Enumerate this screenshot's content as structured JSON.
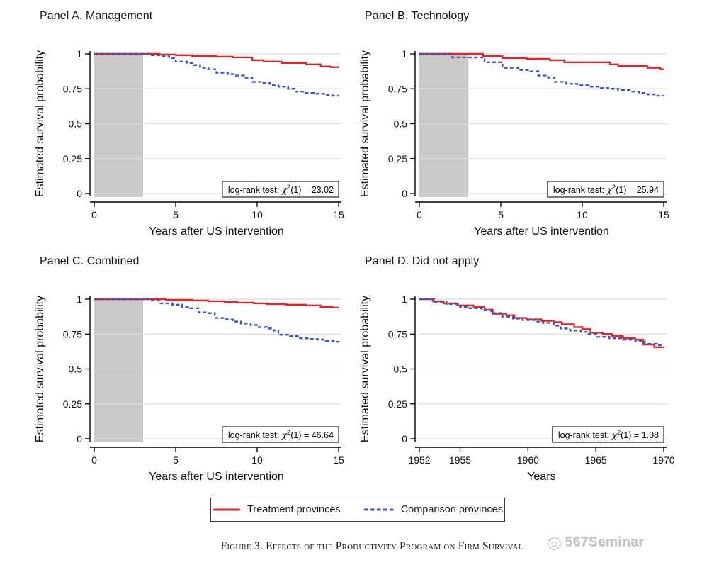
{
  "figure": {
    "caption": "Figure 3. Effects of the Productivity Program on Firm Survival",
    "watermark": "567Seminar"
  },
  "legend": {
    "position": "bottom",
    "items": [
      {
        "label": "Treatment provinces",
        "line_style": "solid",
        "color": "#e4242b"
      },
      {
        "label": "Comparison provinces",
        "line_style": "dashed",
        "color": "#3c55b8"
      }
    ]
  },
  "style": {
    "treatment_color": "#e4242b",
    "comparison_color": "#3c55b8",
    "grid_color": "#dcdfe3",
    "shade_color": "#c9c9c9",
    "axis_color": "#000000",
    "annotation_border": "#333333"
  },
  "chart_data": [
    {
      "type": "line",
      "subtype": "kaplan-meier-step",
      "title": "Panel A. Management",
      "xlabel": "Years after US intervention",
      "ylabel": "Estimated survival probability",
      "xlim": [
        0,
        15
      ],
      "ylim": [
        0,
        1
      ],
      "xticks": [
        0,
        5,
        10,
        15
      ],
      "yticks": [
        0,
        0.25,
        0.5,
        0.75,
        1
      ],
      "ytick_labels": [
        "0",
        "0.25",
        "0.5",
        "0.75",
        "1"
      ],
      "grid": true,
      "shaded_region_x": [
        0,
        3
      ],
      "logrank_text": "log-rank test: χ²(1) = 23.02",
      "logrank_chi2": 23.02,
      "series": [
        {
          "name": "Treatment provinces",
          "style": "solid",
          "color": "#e4242b",
          "step_points": [
            [
              0,
              1
            ],
            [
              4,
              0.995
            ],
            [
              5,
              0.99
            ],
            [
              6,
              0.985
            ],
            [
              7.5,
              0.98
            ],
            [
              8.5,
              0.975
            ],
            [
              9.7,
              0.955
            ],
            [
              10.4,
              0.945
            ],
            [
              11.5,
              0.935
            ],
            [
              13,
              0.925
            ],
            [
              13.9,
              0.91
            ],
            [
              14.5,
              0.905
            ],
            [
              15,
              0.905
            ]
          ]
        },
        {
          "name": "Comparison provinces",
          "style": "dashed",
          "color": "#3c55b8",
          "step_points": [
            [
              0,
              1
            ],
            [
              3.4,
              0.99
            ],
            [
              4.2,
              0.985
            ],
            [
              4.6,
              0.97
            ],
            [
              5,
              0.945
            ],
            [
              5.7,
              0.935
            ],
            [
              6.1,
              0.92
            ],
            [
              6.5,
              0.9
            ],
            [
              7,
              0.89
            ],
            [
              7.5,
              0.865
            ],
            [
              8.2,
              0.855
            ],
            [
              8.7,
              0.845
            ],
            [
              9.2,
              0.83
            ],
            [
              9.7,
              0.8
            ],
            [
              10.3,
              0.79
            ],
            [
              10.8,
              0.775
            ],
            [
              11.3,
              0.765
            ],
            [
              11.9,
              0.75
            ],
            [
              12.3,
              0.73
            ],
            [
              12.9,
              0.72
            ],
            [
              13.5,
              0.715
            ],
            [
              14.1,
              0.705
            ],
            [
              14.6,
              0.7
            ],
            [
              15,
              0.7
            ]
          ]
        }
      ]
    },
    {
      "type": "line",
      "subtype": "kaplan-meier-step",
      "title": "Panel B. Technology",
      "xlabel": "Years after US intervention",
      "ylabel": "Estimated survival probability",
      "xlim": [
        0,
        15
      ],
      "ylim": [
        0,
        1
      ],
      "xticks": [
        0,
        5,
        10,
        15
      ],
      "yticks": [
        0,
        0.25,
        0.5,
        0.75,
        1
      ],
      "ytick_labels": [
        "0",
        "0.25",
        "0.5",
        "0.75",
        "1"
      ],
      "grid": true,
      "shaded_region_x": [
        0,
        3
      ],
      "logrank_text": "log-rank test: χ²(1) = 25.94",
      "logrank_chi2": 25.94,
      "series": [
        {
          "name": "Treatment provinces",
          "style": "solid",
          "color": "#e4242b",
          "step_points": [
            [
              0,
              1
            ],
            [
              3.9,
              0.985
            ],
            [
              5.1,
              0.97
            ],
            [
              6.6,
              0.965
            ],
            [
              8,
              0.955
            ],
            [
              8.9,
              0.94
            ],
            [
              11.7,
              0.925
            ],
            [
              12.2,
              0.915
            ],
            [
              14,
              0.9
            ],
            [
              14.8,
              0.89
            ],
            [
              15,
              0.89
            ]
          ]
        },
        {
          "name": "Comparison provinces",
          "style": "dashed",
          "color": "#3c55b8",
          "step_points": [
            [
              0,
              1
            ],
            [
              2,
              0.975
            ],
            [
              4,
              0.94
            ],
            [
              5.1,
              0.9
            ],
            [
              6.2,
              0.885
            ],
            [
              6.8,
              0.875
            ],
            [
              7.3,
              0.845
            ],
            [
              7.9,
              0.83
            ],
            [
              8.3,
              0.8
            ],
            [
              9,
              0.785
            ],
            [
              9.7,
              0.775
            ],
            [
              10.4,
              0.765
            ],
            [
              11,
              0.755
            ],
            [
              11.6,
              0.75
            ],
            [
              12.2,
              0.74
            ],
            [
              12.9,
              0.73
            ],
            [
              13.5,
              0.72
            ],
            [
              14,
              0.71
            ],
            [
              14.6,
              0.7
            ],
            [
              15,
              0.7
            ]
          ]
        }
      ]
    },
    {
      "type": "line",
      "subtype": "kaplan-meier-step",
      "title": "Panel C. Combined",
      "xlabel": "Years after US intervention",
      "ylabel": "Estimated survival probability",
      "xlim": [
        0,
        15
      ],
      "ylim": [
        0,
        1
      ],
      "xticks": [
        0,
        5,
        10,
        15
      ],
      "yticks": [
        0,
        0.25,
        0.5,
        0.75,
        1
      ],
      "ytick_labels": [
        "0",
        "0.25",
        "0.5",
        "0.75",
        "1"
      ],
      "grid": true,
      "shaded_region_x": [
        0,
        3
      ],
      "logrank_text": "log-rank test: χ²(1) = 46.64",
      "logrank_chi2": 46.64,
      "series": [
        {
          "name": "Treatment provinces",
          "style": "solid",
          "color": "#e4242b",
          "step_points": [
            [
              0,
              1
            ],
            [
              4.4,
              0.995
            ],
            [
              6,
              0.99
            ],
            [
              7,
              0.985
            ],
            [
              8,
              0.98
            ],
            [
              8.8,
              0.975
            ],
            [
              9.8,
              0.97
            ],
            [
              10.6,
              0.965
            ],
            [
              11.8,
              0.96
            ],
            [
              13,
              0.955
            ],
            [
              13.9,
              0.945
            ],
            [
              14.6,
              0.94
            ],
            [
              15,
              0.94
            ]
          ]
        },
        {
          "name": "Comparison provinces",
          "style": "dashed",
          "color": "#3c55b8",
          "step_points": [
            [
              0,
              1
            ],
            [
              3.4,
              0.99
            ],
            [
              4,
              0.97
            ],
            [
              4.8,
              0.96
            ],
            [
              5.4,
              0.945
            ],
            [
              5.9,
              0.935
            ],
            [
              6.4,
              0.905
            ],
            [
              7,
              0.9
            ],
            [
              7.4,
              0.865
            ],
            [
              8,
              0.855
            ],
            [
              8.5,
              0.84
            ],
            [
              9,
              0.825
            ],
            [
              9.6,
              0.815
            ],
            [
              10.1,
              0.8
            ],
            [
              10.6,
              0.79
            ],
            [
              11,
              0.775
            ],
            [
              11.3,
              0.745
            ],
            [
              12,
              0.735
            ],
            [
              12.5,
              0.72
            ],
            [
              13.1,
              0.715
            ],
            [
              13.7,
              0.71
            ],
            [
              14.2,
              0.7
            ],
            [
              14.7,
              0.695
            ],
            [
              15,
              0.69
            ]
          ]
        }
      ]
    },
    {
      "type": "line",
      "subtype": "kaplan-meier-step",
      "title": "Panel D. Did not apply",
      "xlabel": "Years",
      "ylabel": "Estimated survival probability",
      "xlim": [
        1952,
        1970
      ],
      "ylim": [
        0,
        1
      ],
      "xticks": [
        1952,
        1955,
        1960,
        1965,
        1970
      ],
      "yticks": [
        0,
        0.25,
        0.5,
        0.75,
        1
      ],
      "ytick_labels": [
        "0",
        "0.25",
        "0.5",
        "0.75",
        "1"
      ],
      "grid": true,
      "shaded_region_x": null,
      "logrank_text": "log-rank test: χ²(1) = 1.08",
      "logrank_chi2": 1.08,
      "series": [
        {
          "name": "Treatment provinces",
          "style": "solid",
          "color": "#e4242b",
          "step_points": [
            [
              1952,
              1
            ],
            [
              1953,
              0.985
            ],
            [
              1953.8,
              0.97
            ],
            [
              1954.8,
              0.955
            ],
            [
              1956,
              0.945
            ],
            [
              1956.8,
              0.925
            ],
            [
              1957.4,
              0.895
            ],
            [
              1958.4,
              0.885
            ],
            [
              1959,
              0.865
            ],
            [
              1959.9,
              0.855
            ],
            [
              1961,
              0.845
            ],
            [
              1961.9,
              0.835
            ],
            [
              1962.5,
              0.82
            ],
            [
              1963.4,
              0.8
            ],
            [
              1964,
              0.785
            ],
            [
              1964.6,
              0.76
            ],
            [
              1965.5,
              0.75
            ],
            [
              1966.2,
              0.735
            ],
            [
              1967,
              0.72
            ],
            [
              1967.9,
              0.71
            ],
            [
              1968.5,
              0.675
            ],
            [
              1969.3,
              0.655
            ],
            [
              1970,
              0.655
            ]
          ]
        },
        {
          "name": "Comparison provinces",
          "style": "dashed",
          "color": "#3c55b8",
          "step_points": [
            [
              1952,
              1
            ],
            [
              1953.1,
              0.98
            ],
            [
              1954,
              0.965
            ],
            [
              1955,
              0.945
            ],
            [
              1955.7,
              0.935
            ],
            [
              1956.6,
              0.92
            ],
            [
              1957.3,
              0.9
            ],
            [
              1958.1,
              0.875
            ],
            [
              1958.9,
              0.86
            ],
            [
              1959.6,
              0.85
            ],
            [
              1960.5,
              0.84
            ],
            [
              1961.1,
              0.83
            ],
            [
              1961.9,
              0.81
            ],
            [
              1962.4,
              0.79
            ],
            [
              1963.1,
              0.775
            ],
            [
              1963.9,
              0.765
            ],
            [
              1964.4,
              0.75
            ],
            [
              1965.1,
              0.73
            ],
            [
              1966,
              0.72
            ],
            [
              1967,
              0.71
            ],
            [
              1967.9,
              0.7
            ],
            [
              1968.6,
              0.68
            ],
            [
              1969.5,
              0.67
            ],
            [
              1970,
              0.67
            ]
          ]
        }
      ]
    }
  ]
}
